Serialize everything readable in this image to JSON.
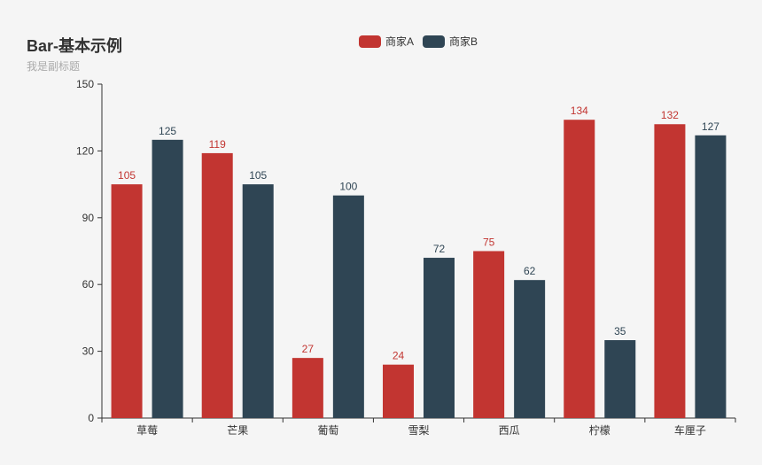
{
  "title": "Bar-基本示例",
  "subtitle": "我是副标题",
  "colors": {
    "series_a": "#c23531",
    "series_b": "#2f4554",
    "axis": "#333333",
    "background": "#f5f5f5"
  },
  "legend": [
    {
      "name": "商家A",
      "color": "#c23531"
    },
    {
      "name": "商家B",
      "color": "#2f4554"
    }
  ],
  "chart_data": {
    "type": "bar",
    "title": "Bar-基本示例",
    "subtitle": "我是副标题",
    "categories": [
      "草莓",
      "芒果",
      "葡萄",
      "雪梨",
      "西瓜",
      "柠檬",
      "车厘子"
    ],
    "series": [
      {
        "name": "商家A",
        "color": "#c23531",
        "values": [
          105,
          119,
          27,
          24,
          75,
          134,
          132
        ]
      },
      {
        "name": "商家B",
        "color": "#2f4554",
        "values": [
          125,
          105,
          100,
          72,
          62,
          35,
          127
        ]
      }
    ],
    "ylim": [
      0,
      150
    ],
    "yticks": [
      0,
      30,
      60,
      90,
      120,
      150
    ],
    "xlabel": "",
    "ylabel": "",
    "grid": false,
    "legend_position": "top-center"
  }
}
